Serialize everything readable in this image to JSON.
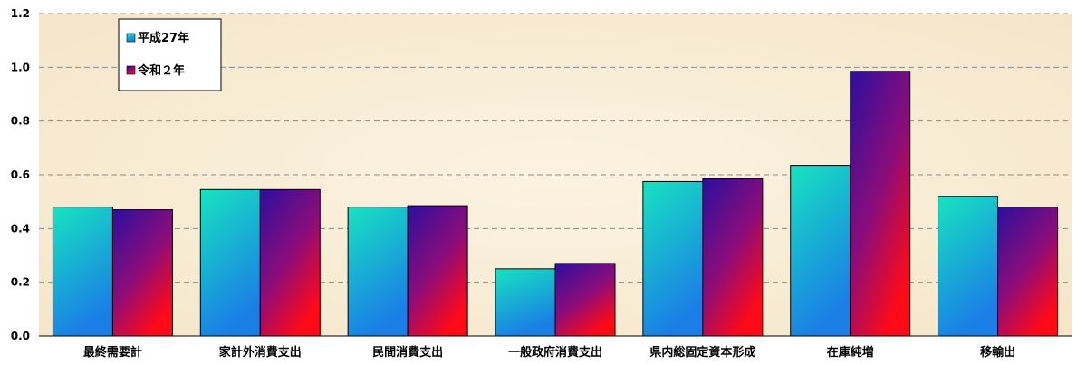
{
  "chart_data": {
    "type": "bar",
    "categories": [
      "最終需要計",
      "家計外消費支出",
      "民間消費支出",
      "一般政府消費支出",
      "県内総固定資本形成",
      "在庫純増",
      "移輸出"
    ],
    "series": [
      {
        "name": "平成27年",
        "values": [
          0.48,
          0.545,
          0.48,
          0.25,
          0.575,
          0.635,
          0.52
        ]
      },
      {
        "name": "令和２年",
        "values": [
          0.47,
          0.545,
          0.485,
          0.27,
          0.585,
          0.985,
          0.48
        ]
      }
    ],
    "ylim": [
      0,
      1.2
    ],
    "yticks": [
      "0.0",
      "0.2",
      "0.4",
      "0.6",
      "0.8",
      "1.0",
      "1.2"
    ],
    "grid": true,
    "legend_position": "top-left",
    "colors": {
      "s1_top": "#17e3c0",
      "s1_bottom": "#1a7ee6",
      "s2_top": "#2b0f9e",
      "s2_bottom": "#ff0a16",
      "grid": "#8a8a8a",
      "plot_bg": "#f7ebd3"
    }
  }
}
